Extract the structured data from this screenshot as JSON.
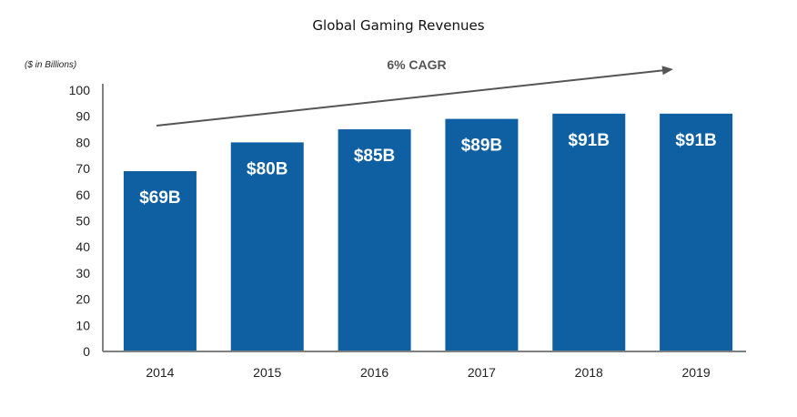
{
  "chart_data": {
    "type": "bar",
    "title": "Global Gaming Revenues",
    "ylabel": "($ in Billions)",
    "xlabel": "",
    "categories": [
      "2014",
      "2015",
      "2016",
      "2017",
      "2018",
      "2019"
    ],
    "values": [
      69,
      80,
      85,
      89,
      91,
      91
    ],
    "data_labels": [
      "$69B",
      "$80B",
      "$85B",
      "$89B",
      "$91B",
      "$91B"
    ],
    "ylim": [
      0,
      100
    ],
    "yticks": [
      0,
      10,
      20,
      30,
      40,
      50,
      60,
      70,
      80,
      90,
      100
    ],
    "grid": false,
    "legend": "none",
    "annotation": "6% CAGR",
    "bar_color": "#0f5fa3",
    "axis_color": "#808080",
    "arrow_color": "#555555"
  }
}
